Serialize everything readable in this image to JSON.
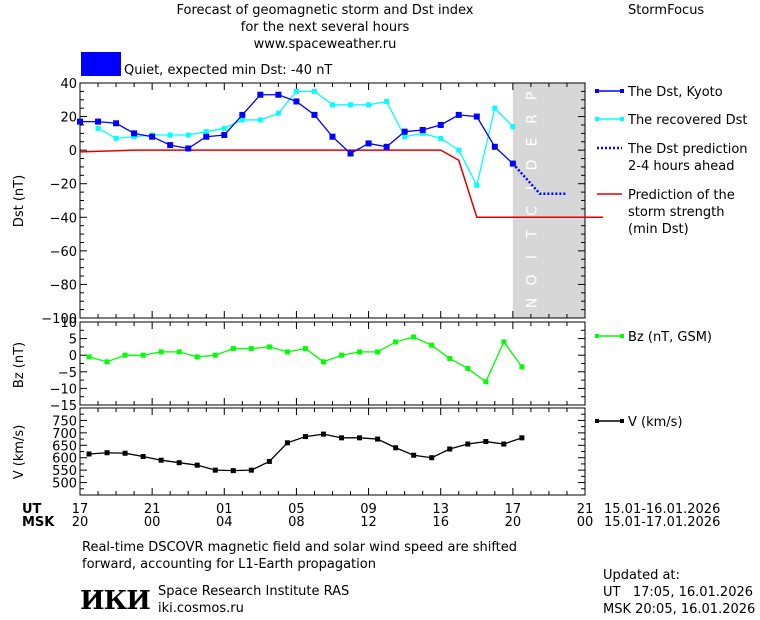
{
  "header": {
    "title_line1": "Forecast of geomagnetic storm and Dst index",
    "title_line2": "for the next several hours",
    "url": "www.spaceweather.ru",
    "brand": "StormFocus",
    "status_color": "#0000ff",
    "status_text": "Quiet, expected min Dst: -40 nT"
  },
  "chart_data": [
    {
      "type": "line",
      "ylabel": "Dst (nT)",
      "ylim": [
        -100,
        40
      ],
      "yticks": [
        40,
        20,
        0,
        -20,
        -40,
        -60,
        -80,
        -100
      ],
      "prediction_label": "PREDICTION",
      "x_hours": [
        17,
        18,
        19,
        20,
        21,
        22,
        23,
        24,
        25,
        26,
        27,
        28,
        29,
        30,
        31,
        32,
        33,
        34,
        35,
        36,
        37,
        38,
        39,
        40,
        41
      ],
      "series": [
        {
          "name": "The Dst, Kyoto",
          "color": "#0000ff",
          "values": [
            17,
            17,
            16,
            10,
            8,
            3,
            1,
            8,
            9,
            21,
            33,
            33,
            29,
            21,
            8,
            -2,
            4,
            2,
            11,
            12,
            15,
            21,
            20,
            2,
            -8
          ]
        },
        {
          "name": "The recovered Dst",
          "color": "#00ffff",
          "values": [
            null,
            13,
            7,
            8,
            9,
            9,
            9,
            11,
            13,
            18,
            18,
            22,
            35,
            35,
            27,
            27,
            27,
            29,
            8,
            10,
            7,
            0,
            -21,
            25,
            14
          ]
        },
        {
          "name": "The Dst prediction 2-4 hours ahead",
          "color": "#0000ff",
          "points": [
            [
              41,
              -8
            ],
            [
              41.5,
              -14
            ],
            [
              42,
              -20
            ],
            [
              42.5,
              -26
            ],
            [
              44,
              -26
            ]
          ]
        },
        {
          "name": "Prediction of the storm strength (min Dst)",
          "color": "#e00000",
          "points": [
            [
              17,
              -1
            ],
            [
              20,
              0
            ],
            [
              37,
              0
            ],
            [
              38,
              -6
            ],
            [
              39,
              -40
            ],
            [
              46,
              -40
            ]
          ]
        }
      ],
      "legend": [
        {
          "line1": "The Dst, Kyoto",
          "line2": "",
          "line3": ""
        },
        {
          "line1": "The recovered Dst",
          "line2": "",
          "line3": ""
        },
        {
          "line1": "The Dst prediction",
          "line2": "2-4 hours ahead",
          "line3": ""
        },
        {
          "line1": "Prediction of the",
          "line2": "storm strength",
          "line3": "(min Dst)"
        }
      ]
    },
    {
      "type": "line",
      "ylabel": "Bz (nT)",
      "ylim": [
        -15,
        10
      ],
      "yticks": [
        10,
        5,
        0,
        -5,
        -10,
        -15
      ],
      "series": [
        {
          "name": "Bz (nT, GSM)",
          "color": "#00ff00",
          "x": [
            17.5,
            18.5,
            19.5,
            20.5,
            21.5,
            22.5,
            23.5,
            24.5,
            25.5,
            26.5,
            27.5,
            28.5,
            29.5,
            30.5,
            31.5,
            32.5,
            33.5,
            34.5,
            35.5,
            36.5,
            37.5,
            38.5,
            39.5,
            40.5,
            41.5,
            42.5
          ],
          "values": [
            -0.5,
            -2,
            0,
            0,
            1,
            1,
            -0.5,
            0,
            2,
            2,
            2.5,
            1,
            2,
            -2,
            0,
            1,
            1,
            4,
            5.5,
            3,
            -1,
            -4,
            -8,
            4,
            -3.5,
            null
          ]
        }
      ]
    },
    {
      "type": "line",
      "ylabel": "V (km/s)",
      "ylim": [
        450,
        800
      ],
      "yticks": [
        750,
        700,
        650,
        600,
        550,
        500
      ],
      "series": [
        {
          "name": "V (km/s)",
          "color": "#000000",
          "x": [
            17.5,
            18.5,
            19.5,
            20.5,
            21.5,
            22.5,
            23.5,
            24.5,
            25.5,
            26.5,
            27.5,
            28.5,
            29.5,
            30.5,
            31.5,
            32.5,
            33.5,
            34.5,
            35.5,
            36.5,
            37.5,
            38.5,
            39.5,
            40.5,
            41.5
          ],
          "values": [
            615,
            620,
            618,
            605,
            590,
            580,
            570,
            550,
            548,
            550,
            585,
            660,
            685,
            695,
            680,
            680,
            675,
            640,
            610,
            600,
            635,
            655,
            665,
            655,
            680
          ]
        }
      ]
    }
  ],
  "axis": {
    "ut_label": "UT",
    "msk_label": "MSK",
    "ut_ticks": [
      "17",
      "21",
      "01",
      "05",
      "09",
      "13",
      "17",
      "21"
    ],
    "msk_ticks": [
      "20",
      "00",
      "04",
      "08",
      "12",
      "16",
      "20",
      "00"
    ],
    "ut_range": "15.01-16.01.2026",
    "msk_range": "15.01-17.01.2026"
  },
  "footer": {
    "note_line1": "Real-time DSCOVR magnetic field and solar wind speed are shifted",
    "note_line2": "forward, accounting for L1-Earth propagation",
    "logo_text": "ИКИ",
    "institute": "Space Research Institute RAS",
    "site": "iki.cosmos.ru",
    "updated_label": "Updated at:",
    "updated_ut": "UT   17:05, 16.01.2026",
    "updated_msk": "MSK 20:05, 16.01.2026"
  }
}
